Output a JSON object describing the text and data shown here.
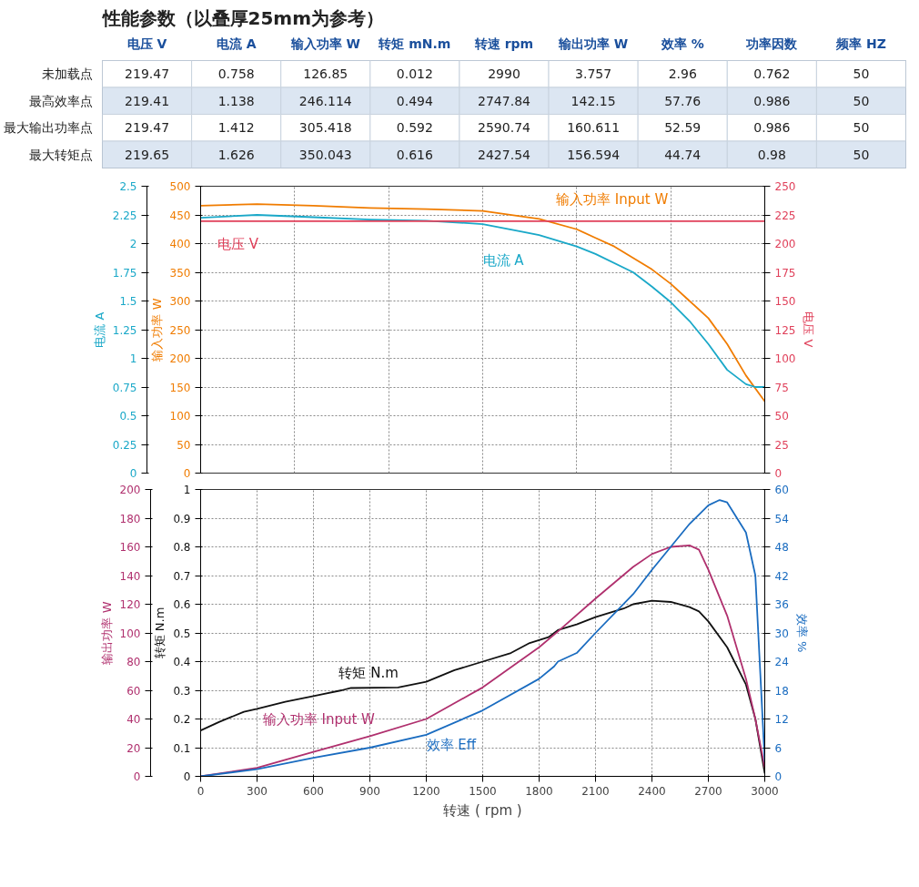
{
  "chart_data": [
    {
      "type": "heatmap",
      "title": "性能参数（以叠厚25mm为参考）",
      "data_labels": true,
      "categories": [
        "电压 V",
        "电流 A",
        "输入功率 W",
        "转矩 mN.m",
        "转速 rpm",
        "输出功率 W",
        "效率 %",
        "功率因数",
        "频率 HZ"
      ],
      "y_categories": [
        "未加载点",
        "最高效率点",
        "最大输出功率点",
        "最大转矩点"
      ],
      "cells": [
        [
          219.47,
          0.758,
          126.85,
          0.012,
          2990,
          3.757,
          2.96,
          0.762,
          50
        ],
        [
          219.41,
          1.138,
          246.114,
          0.494,
          2747.84,
          142.15,
          57.76,
          0.986,
          50
        ],
        [
          219.47,
          1.412,
          305.418,
          0.592,
          2590.74,
          160.611,
          52.59,
          0.986,
          50
        ],
        [
          219.65,
          1.626,
          350.043,
          0.616,
          2427.54,
          156.594,
          44.74,
          0.98,
          50
        ]
      ]
    },
    {
      "type": "line",
      "ylabel": "输入功率 W",
      "y2label": "电流 A",
      "y3label": "电压 V",
      "tick_labels": "y",
      "xlim": [
        0,
        3000
      ],
      "ylim": [
        0,
        500
      ],
      "yticks": [
        0,
        50,
        100,
        150,
        200,
        250,
        300,
        350,
        400,
        450,
        500
      ],
      "y2lim": [
        0,
        2.5
      ],
      "y2ticks": [
        0,
        0.25,
        0.5,
        0.75,
        1,
        1.25,
        1.5,
        1.75,
        2,
        2.25,
        2.5
      ],
      "y3lim": [
        0,
        250
      ],
      "y3ticks": [
        0,
        25,
        50,
        75,
        100,
        125,
        150,
        175,
        200,
        225,
        250
      ],
      "grid": true,
      "series": [
        {
          "name": "输入功率 Input W",
          "color": "#f07c00",
          "x": [
            0,
            300,
            600,
            900,
            1200,
            1500,
            1800,
            2000,
            2100,
            2200,
            2400,
            2500,
            2600,
            2700,
            2800,
            2900,
            3000
          ],
          "values": [
            466,
            469,
            466,
            462,
            460,
            457,
            443,
            425,
            410,
            395,
            355,
            330,
            300,
            270,
            225,
            170,
            125
          ]
        },
        {
          "name": "电流 A",
          "color": "#1aa8c8",
          "axis": "y2",
          "x": [
            0,
            300,
            600,
            900,
            1200,
            1500,
            1800,
            2000,
            2100,
            2300,
            2400,
            2500,
            2600,
            2700,
            2800,
            2900,
            2950,
            3000
          ],
          "values": [
            2.225,
            2.25,
            2.23,
            2.21,
            2.2,
            2.17,
            2.075,
            1.975,
            1.91,
            1.75,
            1.625,
            1.49,
            1.325,
            1.125,
            0.9,
            0.775,
            0.75,
            0.75
          ]
        },
        {
          "name": "电压 V",
          "color": "#e0405a",
          "axis": "y3",
          "x": [
            0,
            3000
          ],
          "values": [
            219.5,
            219.5
          ]
        }
      ]
    },
    {
      "type": "line",
      "xlabel": "转速 ( rpm )",
      "ylabel": "转矩 N.m",
      "y2label": "输出功率 W",
      "y3label": "效率 %",
      "xlim": [
        0,
        3000
      ],
      "xticks": [
        0,
        300,
        600,
        900,
        1200,
        1500,
        1800,
        2100,
        2400,
        2700,
        3000
      ],
      "ylim": [
        0,
        1
      ],
      "yticks": [
        0,
        0.1,
        0.2,
        0.3,
        0.4,
        0.5,
        0.6,
        0.7,
        0.8,
        0.9,
        1
      ],
      "y2lim": [
        0,
        200
      ],
      "y2ticks": [
        0,
        20,
        40,
        60,
        80,
        100,
        120,
        140,
        160,
        180,
        200
      ],
      "y3lim": [
        0,
        60
      ],
      "y3ticks": [
        0,
        6,
        12,
        18,
        24,
        30,
        36,
        42,
        48,
        54,
        60
      ],
      "grid": true,
      "series": [
        {
          "name": "转矩 N.m",
          "color": "#111111",
          "x": [
            0,
            100,
            230,
            300,
            450,
            600,
            750,
            800,
            1050,
            1200,
            1350,
            1500,
            1650,
            1750,
            1800,
            1850,
            1900,
            2000,
            2100,
            2250,
            2300,
            2400,
            2500,
            2600,
            2650,
            2700,
            2800,
            2900,
            2950,
            3000
          ],
          "values": [
            0.16,
            0.19,
            0.225,
            0.235,
            0.26,
            0.28,
            0.3,
            0.308,
            0.31,
            0.33,
            0.37,
            0.4,
            0.43,
            0.465,
            0.475,
            0.485,
            0.51,
            0.53,
            0.555,
            0.585,
            0.6,
            0.612,
            0.608,
            0.59,
            0.575,
            0.54,
            0.45,
            0.32,
            0.2,
            0.01
          ]
        },
        {
          "name": "输入功率 Input W",
          "color": "#b0306e",
          "axis": "y2",
          "x": [
            0,
            300,
            600,
            900,
            1200,
            1500,
            1800,
            1900,
            2100,
            2300,
            2400,
            2500,
            2600,
            2650,
            2700,
            2800,
            2900,
            2950,
            3000
          ],
          "values": [
            0,
            6,
            17,
            28,
            40,
            62,
            90,
            101,
            124,
            146,
            155,
            160,
            161,
            158,
            144,
            112,
            68,
            40,
            6
          ]
        },
        {
          "name": "效率 Eff",
          "color": "#1a6cc0",
          "axis": "y3",
          "x": [
            0,
            300,
            600,
            900,
            1200,
            1500,
            1800,
            1880,
            1900,
            2000,
            2100,
            2300,
            2400,
            2500,
            2600,
            2700,
            2760,
            2800,
            2900,
            2950,
            3000
          ],
          "values": [
            0,
            1.5,
            3.9,
            6,
            8.7,
            13.8,
            20.4,
            23,
            24,
            25.8,
            30,
            38.1,
            43.2,
            48,
            52.8,
            56.7,
            57.8,
            57.3,
            51,
            42,
            3
          ]
        }
      ]
    }
  ]
}
